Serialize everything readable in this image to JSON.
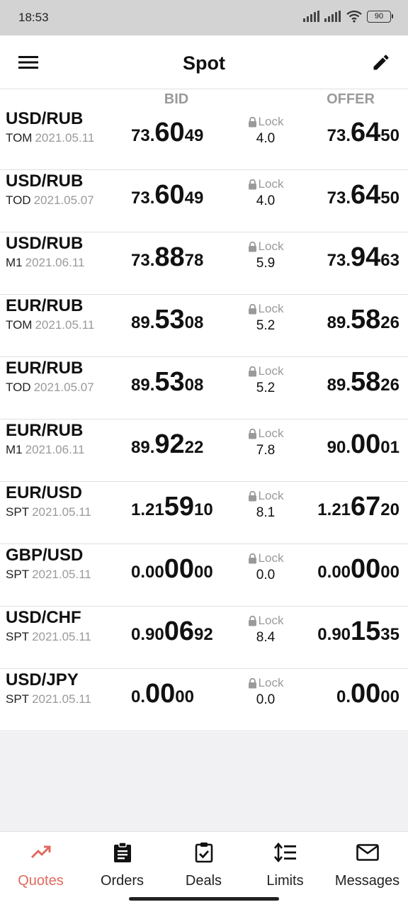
{
  "status": {
    "time": "18:53",
    "battery": "90"
  },
  "header": {
    "title": "Spot"
  },
  "columns": {
    "bid": "BID",
    "offer": "OFFER"
  },
  "lock_label": "Lock",
  "quotes": [
    {
      "pair": "USD/RUB",
      "tenor": "TOM",
      "date": "2021.05.11",
      "bid_pre": "73.",
      "bid_big": "60",
      "bid_post": "49",
      "lock": "4.0",
      "offer_pre": "73.",
      "offer_big": "64",
      "offer_post": "50"
    },
    {
      "pair": "USD/RUB",
      "tenor": "TOD",
      "date": "2021.05.07",
      "bid_pre": "73.",
      "bid_big": "60",
      "bid_post": "49",
      "lock": "4.0",
      "offer_pre": "73.",
      "offer_big": "64",
      "offer_post": "50"
    },
    {
      "pair": "USD/RUB",
      "tenor": "M1",
      "date": "2021.06.11",
      "bid_pre": "73.",
      "bid_big": "88",
      "bid_post": "78",
      "lock": "5.9",
      "offer_pre": "73.",
      "offer_big": "94",
      "offer_post": "63"
    },
    {
      "pair": "EUR/RUB",
      "tenor": "TOM",
      "date": "2021.05.11",
      "bid_pre": "89.",
      "bid_big": "53",
      "bid_post": "08",
      "lock": "5.2",
      "offer_pre": "89.",
      "offer_big": "58",
      "offer_post": "26"
    },
    {
      "pair": "EUR/RUB",
      "tenor": "TOD",
      "date": "2021.05.07",
      "bid_pre": "89.",
      "bid_big": "53",
      "bid_post": "08",
      "lock": "5.2",
      "offer_pre": "89.",
      "offer_big": "58",
      "offer_post": "26"
    },
    {
      "pair": "EUR/RUB",
      "tenor": "M1",
      "date": "2021.06.11",
      "bid_pre": "89.",
      "bid_big": "92",
      "bid_post": "22",
      "lock": "7.8",
      "offer_pre": "90.",
      "offer_big": "00",
      "offer_post": "01"
    },
    {
      "pair": "EUR/USD",
      "tenor": "SPT",
      "date": "2021.05.11",
      "bid_pre": "1.21",
      "bid_big": "59",
      "bid_post": "10",
      "lock": "8.1",
      "offer_pre": "1.21",
      "offer_big": "67",
      "offer_post": "20"
    },
    {
      "pair": "GBP/USD",
      "tenor": "SPT",
      "date": "2021.05.11",
      "bid_pre": "0.00",
      "bid_big": "00",
      "bid_post": "00",
      "lock": "0.0",
      "offer_pre": "0.00",
      "offer_big": "00",
      "offer_post": "00"
    },
    {
      "pair": "USD/CHF",
      "tenor": "SPT",
      "date": "2021.05.11",
      "bid_pre": "0.90",
      "bid_big": "06",
      "bid_post": "92",
      "lock": "8.4",
      "offer_pre": "0.90",
      "offer_big": "15",
      "offer_post": "35"
    },
    {
      "pair": "USD/JPY",
      "tenor": "SPT",
      "date": "2021.05.11",
      "bid_pre": "0.",
      "bid_big": "00",
      "bid_post": "00",
      "lock": "0.0",
      "offer_pre": "0.",
      "offer_big": "00",
      "offer_post": "00"
    }
  ],
  "nav": [
    {
      "label": "Quotes",
      "icon": "trending-up-icon",
      "active": true
    },
    {
      "label": "Orders",
      "icon": "clipboard-list-icon",
      "active": false
    },
    {
      "label": "Deals",
      "icon": "clipboard-check-icon",
      "active": false
    },
    {
      "label": "Limits",
      "icon": "line-spacing-icon",
      "active": false
    },
    {
      "label": "Messages",
      "icon": "mail-icon",
      "active": false
    }
  ],
  "colors": {
    "accent": "#e06a5e",
    "muted": "#9a9a9a",
    "status_bar": "#d3d3d3"
  }
}
